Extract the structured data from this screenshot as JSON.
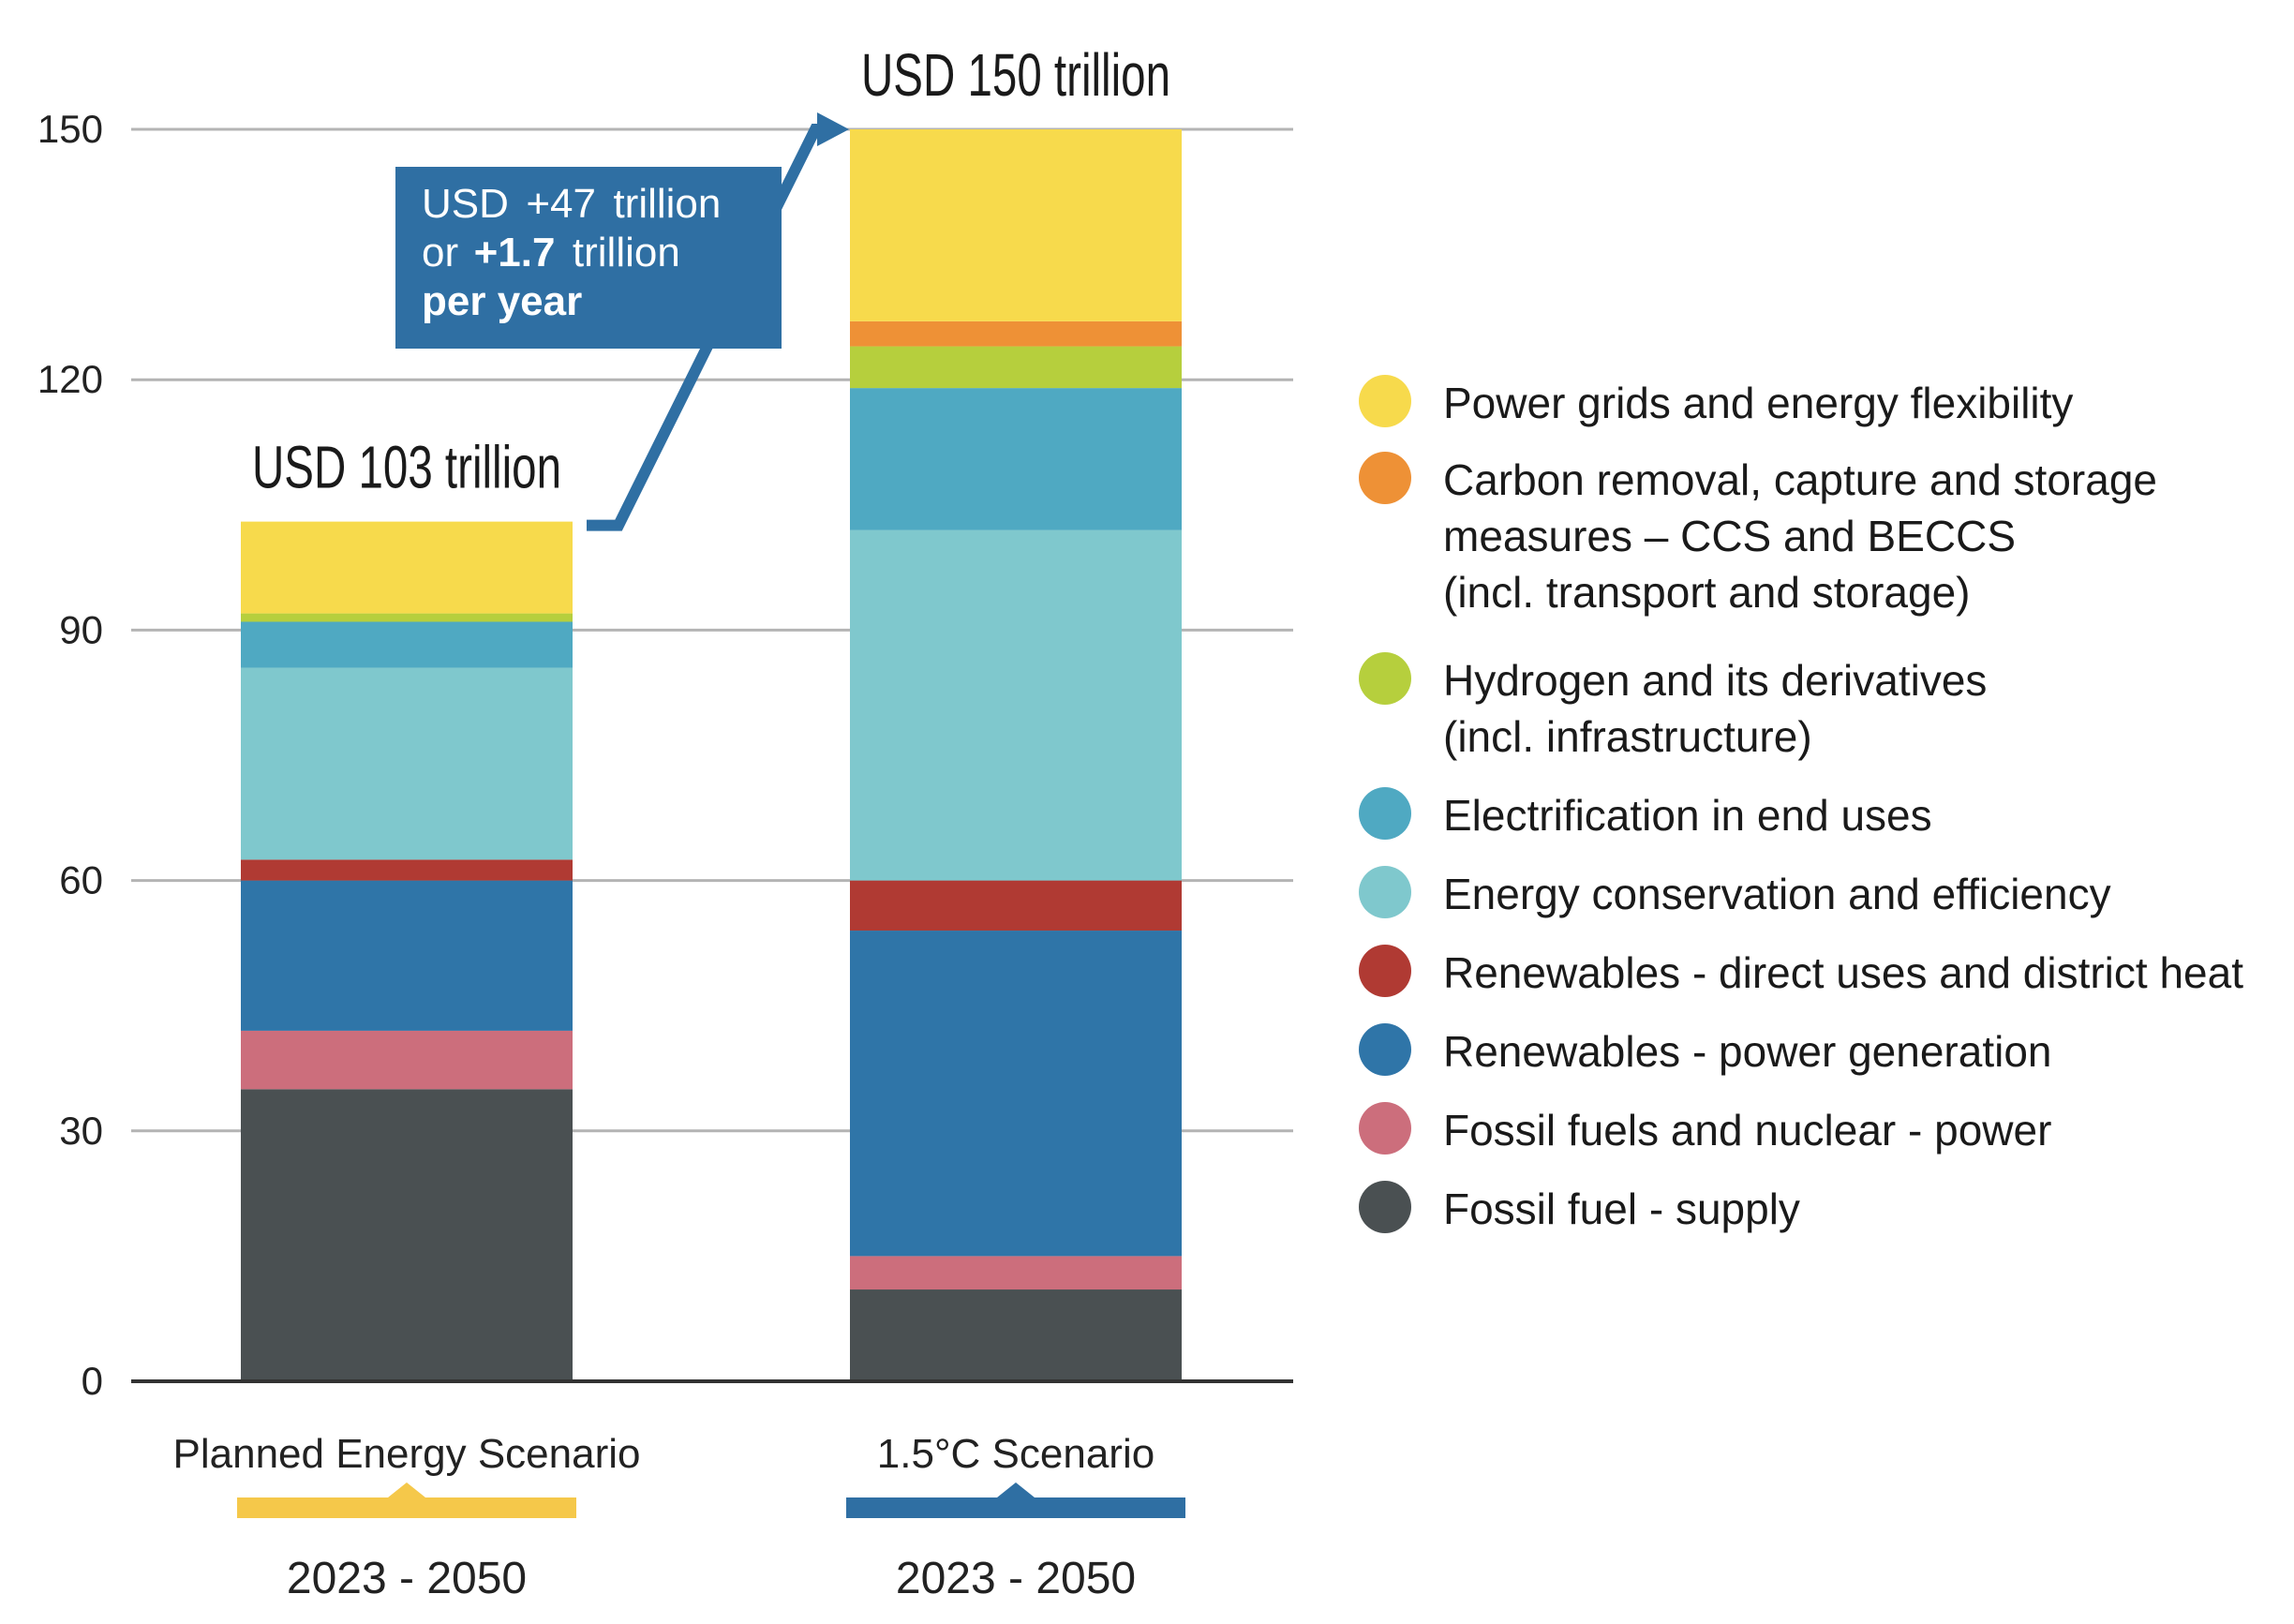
{
  "chart_data": {
    "type": "stacked-bar",
    "ylim": [
      0,
      150
    ],
    "yticks": [
      0,
      30,
      60,
      90,
      120,
      150
    ],
    "grid": true,
    "categories": [
      {
        "name": "Planned Energy Scenario",
        "period": "2023 - 2050",
        "total_label": "USD 103 trillion",
        "marker_color": "#F5C84A"
      },
      {
        "name": "1.5°C Scenario",
        "period": "2023 - 2050",
        "total_label": "USD 150 trillion",
        "marker_color": "#2F6FA3"
      }
    ],
    "series": [
      {
        "name": "Fossil fuel - supply",
        "color": "#4A5052",
        "values": [
          35,
          11
        ]
      },
      {
        "name": "Fossil fuels and nuclear - power",
        "color": "#CC6E7C",
        "values": [
          7,
          4
        ]
      },
      {
        "name": "Renewables - power generation",
        "color": "#2F75A8",
        "values": [
          18,
          39
        ]
      },
      {
        "name": "Renewables - direct uses and district heat",
        "color": "#B03A33",
        "values": [
          2.5,
          6
        ]
      },
      {
        "name": "Energy conservation and efficiency",
        "color": "#7FC8CD",
        "values": [
          23,
          42
        ]
      },
      {
        "name": "Electrification in end uses",
        "color": "#4FA9C2",
        "values": [
          5.5,
          17
        ]
      },
      {
        "name": "Hydrogen and its derivatives",
        "color": "#B6CF3D",
        "values": [
          1,
          5
        ]
      },
      {
        "name": "Carbon removal, capture and storage measures – CCS and BECCS",
        "color": "#EE9136",
        "values": [
          0,
          3
        ]
      },
      {
        "name": "Power grids and energy flexibility",
        "color": "#F7DA4C",
        "values": [
          11,
          23
        ]
      }
    ],
    "annotation": {
      "line1_a": "USD",
      "line1_b": "+47",
      "line1_c": "trillion",
      "line2_a": "or",
      "line2_b": "+1.7",
      "line2_c": "trillion",
      "line3": "per year",
      "box_color": "#2F6FA3"
    }
  },
  "legend": {
    "items": [
      {
        "color": "#F7DA4C",
        "lines": [
          "Power grids and energy flexibility"
        ]
      },
      {
        "color": "#EE9136",
        "lines": [
          "Carbon removal, capture and storage",
          "measures – CCS and BECCS",
          "(incl. transport and storage)"
        ]
      },
      {
        "color": "#B6CF3D",
        "lines": [
          "Hydrogen and its derivatives",
          "(incl. infrastructure)"
        ]
      },
      {
        "color": "#4FA9C2",
        "lines": [
          "Electrification in end uses"
        ]
      },
      {
        "color": "#7FC8CD",
        "lines": [
          "Energy conservation and efficiency"
        ]
      },
      {
        "color": "#B03A33",
        "lines": [
          "Renewables - direct uses and district heat"
        ]
      },
      {
        "color": "#2F75A8",
        "lines": [
          "Renewables - power generation"
        ]
      },
      {
        "color": "#CC6E7C",
        "lines": [
          "Fossil fuels and nuclear - power"
        ]
      },
      {
        "color": "#4A5052",
        "lines": [
          "Fossil fuel - supply"
        ]
      }
    ]
  }
}
